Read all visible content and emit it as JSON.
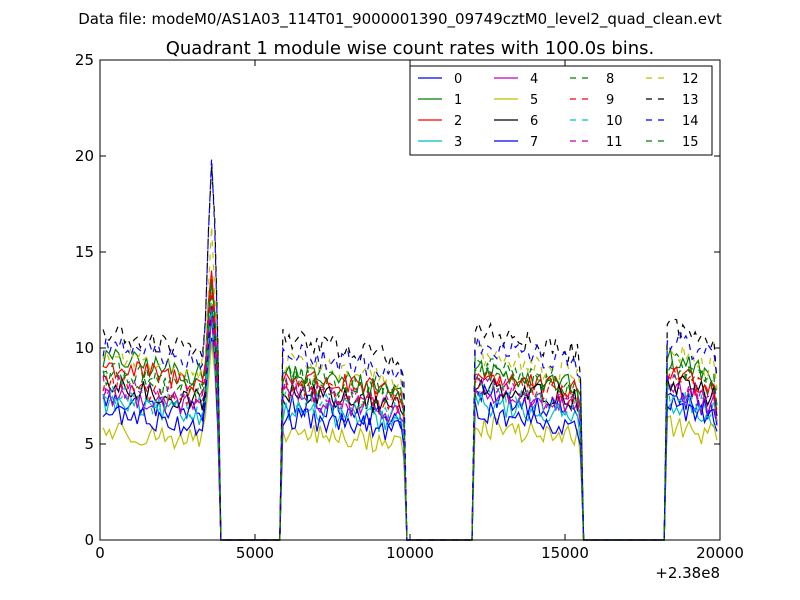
{
  "suptitle": "Data file: modeM0/AS1A03_114T01_9000001390_09749cztM0_level2_quad_clean.evt",
  "chart_data": {
    "type": "line",
    "title": "Quadrant 1 module wise count rates with 100.0s bins.",
    "xlabel": "",
    "ylabel": "",
    "x_offset_label": "+2.38e8",
    "xlim": [
      0,
      20000
    ],
    "ylim": [
      0,
      25
    ],
    "xticks": [
      0,
      5000,
      10000,
      15000,
      20000
    ],
    "xtick_labels": [
      "0",
      "5000",
      "10000",
      "15000",
      "20000"
    ],
    "yticks": [
      0,
      5,
      10,
      15,
      20,
      25
    ],
    "ytick_labels": [
      "0",
      "5",
      "10",
      "15",
      "20",
      "25"
    ],
    "legend_position": "top-right",
    "legend_columns": 4,
    "bin_seconds": 100,
    "segments": [
      {
        "start": 100,
        "end": 3800
      },
      {
        "start": 5900,
        "end": 9800
      },
      {
        "start": 12100,
        "end": 15500
      },
      {
        "start": 18300,
        "end": 19900
      }
    ],
    "series": [
      {
        "name": "0",
        "color": "#0000ff",
        "dash": false,
        "seg_levels": [
          6.8,
          6.6,
          7.0,
          6.9
        ],
        "flare_peak": 11.0
      },
      {
        "name": "1",
        "color": "#008000",
        "dash": false,
        "seg_levels": [
          8.8,
          8.1,
          8.3,
          8.8
        ],
        "flare_peak": 13.5
      },
      {
        "name": "2",
        "color": "#ff0000",
        "dash": false,
        "seg_levels": [
          8.4,
          7.9,
          8.0,
          8.2
        ],
        "flare_peak": 14.5
      },
      {
        "name": "3",
        "color": "#00bfbf",
        "dash": false,
        "seg_levels": [
          6.6,
          6.3,
          6.6,
          6.7
        ],
        "flare_peak": 11.5
      },
      {
        "name": "4",
        "color": "#bf00bf",
        "dash": false,
        "seg_levels": [
          7.1,
          6.9,
          7.1,
          7.2
        ],
        "flare_peak": 12.0
      },
      {
        "name": "5",
        "color": "#bfbf00",
        "dash": false,
        "seg_levels": [
          5.3,
          5.2,
          5.5,
          5.6
        ],
        "flare_peak": 10.0
      },
      {
        "name": "6",
        "color": "#000000",
        "dash": false,
        "seg_levels": [
          7.4,
          7.2,
          7.6,
          7.7
        ],
        "flare_peak": 12.5
      },
      {
        "name": "7",
        "color": "#0000ff",
        "dash": false,
        "seg_levels": [
          6.1,
          5.9,
          6.2,
          6.5
        ],
        "flare_peak": 11.8
      },
      {
        "name": "8",
        "color": "#008000",
        "dash": true,
        "seg_levels": [
          7.9,
          7.6,
          8.1,
          8.3
        ],
        "flare_peak": 13.0
      },
      {
        "name": "9",
        "color": "#ff0000",
        "dash": true,
        "seg_levels": [
          7.6,
          7.4,
          7.8,
          7.9
        ],
        "flare_peak": 13.8
      },
      {
        "name": "10",
        "color": "#00bfbf",
        "dash": true,
        "seg_levels": [
          7.0,
          6.8,
          7.2,
          7.1
        ],
        "flare_peak": 12.2
      },
      {
        "name": "11",
        "color": "#bf00bf",
        "dash": true,
        "seg_levels": [
          7.5,
          7.3,
          7.5,
          7.6
        ],
        "flare_peak": 12.8
      },
      {
        "name": "12",
        "color": "#bfbf00",
        "dash": true,
        "seg_levels": [
          9.0,
          8.6,
          8.9,
          9.2
        ],
        "flare_peak": 16.5
      },
      {
        "name": "13",
        "color": "#000000",
        "dash": true,
        "seg_levels": [
          10.0,
          9.8,
          10.1,
          10.4
        ],
        "flare_peak": 20.3
      },
      {
        "name": "14",
        "color": "#0000ff",
        "dash": true,
        "seg_levels": [
          9.4,
          9.1,
          9.5,
          9.8
        ],
        "flare_peak": 20.0
      },
      {
        "name": "15",
        "color": "#008000",
        "dash": true,
        "seg_levels": [
          8.2,
          8.0,
          8.4,
          8.6
        ],
        "flare_peak": 14.0
      }
    ]
  }
}
